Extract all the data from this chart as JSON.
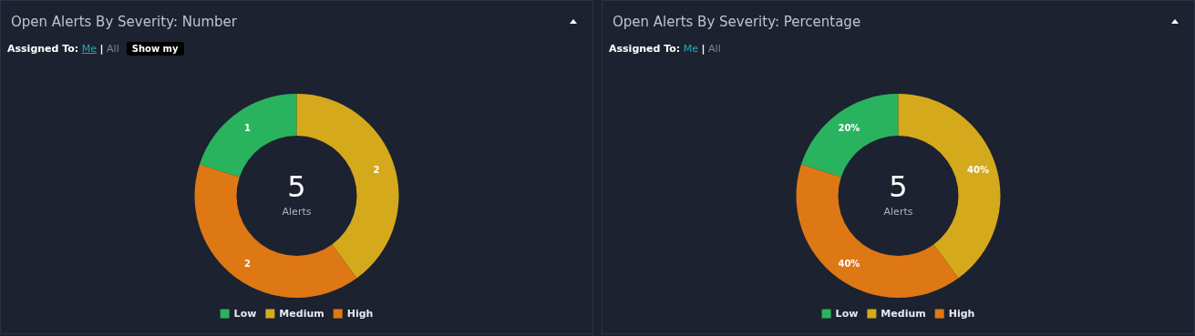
{
  "chart_data": [
    {
      "type": "donut",
      "title": "Open Alerts By Severity: Number",
      "categories": [
        "Low",
        "Medium",
        "High"
      ],
      "values": [
        1,
        2,
        2
      ],
      "colors": [
        "#29b35e",
        "#d4a91c",
        "#de7814"
      ],
      "data_labels": true,
      "legend": "bottom",
      "annotations": [
        "Assigned To:",
        "Me",
        "|",
        "All",
        "5",
        "Alerts",
        "Show my"
      ]
    },
    {
      "type": "donut",
      "title": "Open Alerts By Severity: Percentage",
      "categories": [
        "Low",
        "Medium",
        "High"
      ],
      "values": [
        20,
        40,
        40
      ],
      "value_labels": [
        "20%",
        "40%",
        "40%"
      ],
      "colors": [
        "#29b35e",
        "#d4a91c",
        "#de7814"
      ],
      "legend": "bottom",
      "annotations": [
        "Assigned To:",
        "Me",
        "|",
        "All",
        "5",
        "Alerts"
      ]
    }
  ]
}
